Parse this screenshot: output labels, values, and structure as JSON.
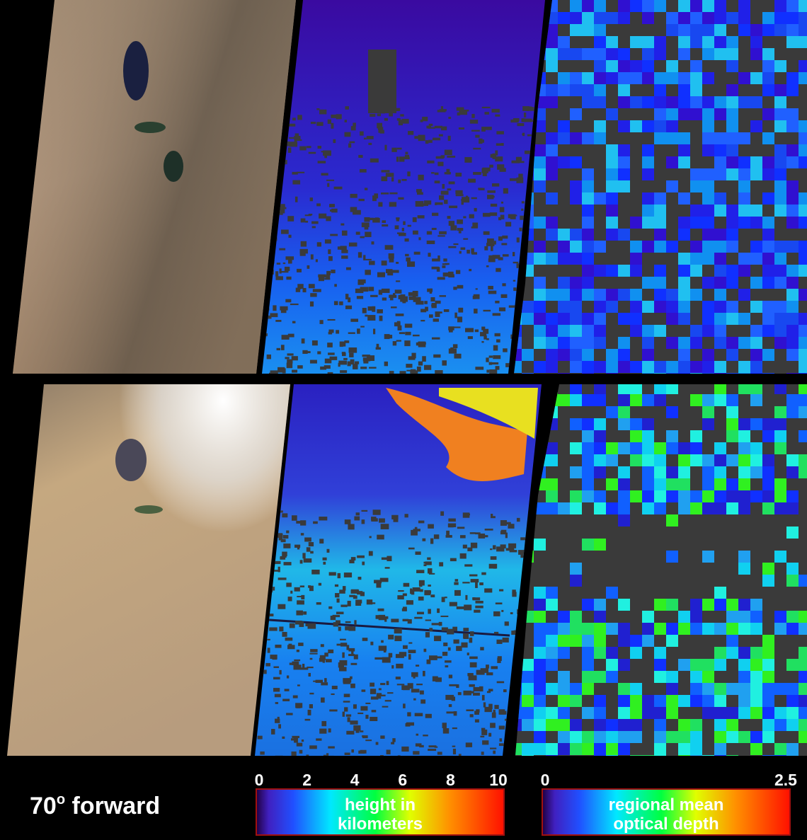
{
  "label": {
    "text": "70",
    "sup": "o",
    "rest": " forward"
  },
  "height_bar": {
    "ticks": [
      0,
      2,
      4,
      6,
      8,
      10
    ],
    "caption": [
      "height in",
      "kilometers"
    ]
  },
  "depth_bar": {
    "ticks": [
      0,
      2.5
    ],
    "caption": [
      "regional mean",
      "optical depth"
    ]
  }
}
